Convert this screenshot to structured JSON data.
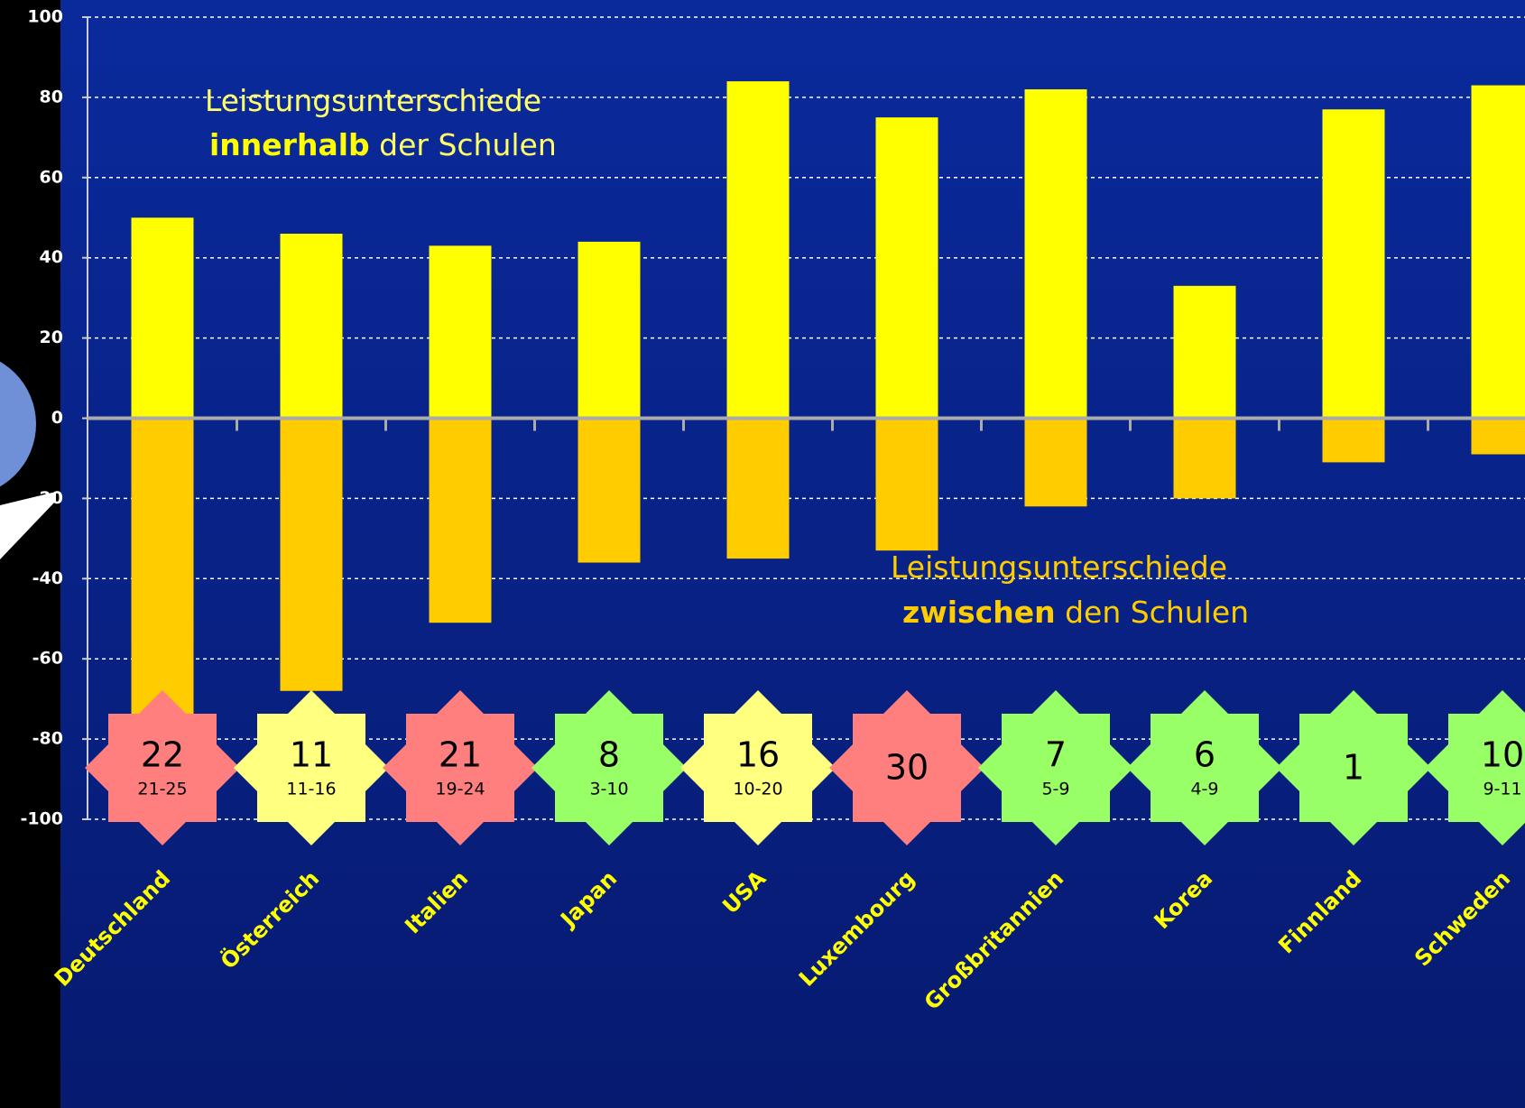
{
  "chart_data": {
    "type": "bar",
    "categories": [
      "Deutschland",
      "Österreich",
      "Italien",
      "Japan",
      "USA",
      "Luxembourg",
      "Großbritannien",
      "Korea",
      "Finnland",
      "Schweden"
    ],
    "series": [
      {
        "color": "#ffff00",
        "values": [
          50,
          46,
          43,
          44,
          84,
          75,
          82,
          33,
          77,
          83
        ]
      },
      {
        "color": "#ffcc00",
        "values": [
          -76,
          -68,
          -51,
          -36,
          -35,
          -33,
          -22,
          -20,
          -11,
          -9
        ]
      }
    ],
    "ylim": [
      -100,
      100
    ],
    "yticks": [
      -100,
      -80,
      -60,
      -40,
      -20,
      0,
      20,
      40,
      60,
      80,
      100
    ],
    "grid": true,
    "annotations": [
      {
        "line1": "Leistungsunterschiede",
        "bold": "innerhalb",
        "rest": "der Schulen"
      },
      {
        "line1": "Leistungsunterschiede",
        "bold": "zwischen",
        "rest": "den Schulen"
      }
    ],
    "badges": [
      {
        "rank": 22,
        "range": "21-25",
        "color": "#ff7f7f"
      },
      {
        "rank": 11,
        "range": "11-16",
        "color": "#ffff80"
      },
      {
        "rank": 21,
        "range": "19-24",
        "color": "#ff7f7f"
      },
      {
        "rank": 8,
        "range": "3-10",
        "color": "#99ff66"
      },
      {
        "rank": 16,
        "range": "10-20",
        "color": "#ffff80"
      },
      {
        "rank": 30,
        "color": "#ff7f7f"
      },
      {
        "rank": 7,
        "range": "5-9",
        "color": "#99ff66"
      },
      {
        "rank": 6,
        "range": "4-9",
        "color": "#99ff66"
      },
      {
        "rank": 1,
        "color": "#99ff66"
      },
      {
        "rank": 10,
        "range": "9-11",
        "color": "#99ff66"
      }
    ]
  }
}
